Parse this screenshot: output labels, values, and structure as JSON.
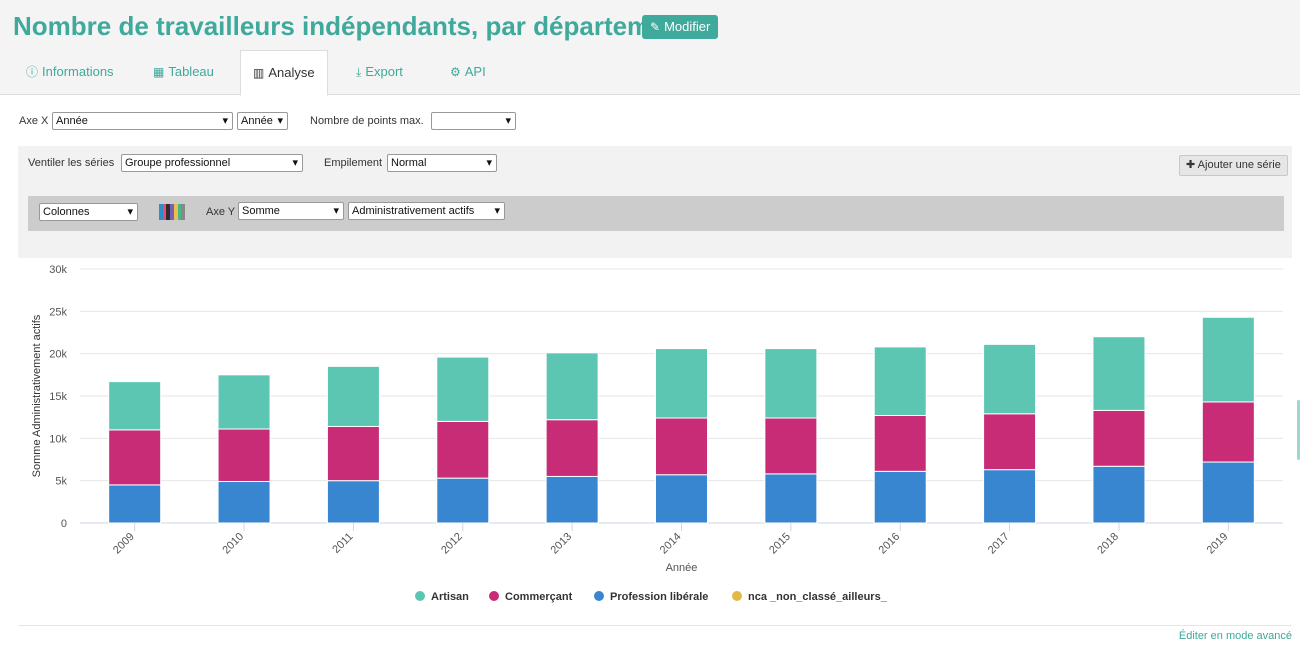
{
  "header": {
    "title": "Nombre de travailleurs indépendants, par département",
    "edit_label": "Modifier"
  },
  "tabs": [
    {
      "label": "Informations",
      "icon": "info-circle-icon",
      "active": false
    },
    {
      "label": "Tableau",
      "icon": "table-icon",
      "active": false
    },
    {
      "label": "Analyse",
      "icon": "bar-chart-icon",
      "active": true
    },
    {
      "label": "Export",
      "icon": "download-icon",
      "active": false
    },
    {
      "label": "API",
      "icon": "gears-icon",
      "active": false
    }
  ],
  "controls": {
    "x_axis_label": "Axe X",
    "x_axis_field": "Année",
    "x_axis_granularity": "Année",
    "max_points_label": "Nombre de points max.",
    "max_points_value": "",
    "breakdown_label": "Ventiler les séries",
    "breakdown_value": "Groupe professionnel",
    "stacking_label": "Empilement",
    "stacking_value": "Normal",
    "add_series_label": "Ajouter une série",
    "series": {
      "chart_type": "Colonnes",
      "y_axis_label": "Axe Y",
      "aggregation": "Somme",
      "field": "Administrativement actifs"
    }
  },
  "colors": {
    "accent": "#3fa99b",
    "artisan": "#5cc6b2",
    "commercant": "#c92c76",
    "profession_liberale": "#3886cf",
    "nca": "#e3b845"
  },
  "chart_data": {
    "type": "bar",
    "stacked": true,
    "categories": [
      "2009",
      "2010",
      "2011",
      "2012",
      "2013",
      "2014",
      "2015",
      "2016",
      "2017",
      "2018",
      "2019"
    ],
    "series": [
      {
        "name": "Profession libérale",
        "color": "#3886cf",
        "values": [
          4500,
          4900,
          5000,
          5300,
          5500,
          5700,
          5800,
          6100,
          6300,
          6700,
          7200
        ]
      },
      {
        "name": "Commerçant",
        "color": "#c92c76",
        "values": [
          6500,
          6200,
          6400,
          6700,
          6700,
          6700,
          6600,
          6600,
          6600,
          6600,
          7100
        ]
      },
      {
        "name": "Artisan",
        "color": "#5cc6b2",
        "values": [
          5700,
          6400,
          7100,
          7600,
          7900,
          8200,
          8200,
          8100,
          8200,
          8700,
          10000
        ]
      },
      {
        "name": "nca _non_classé_ailleurs_",
        "color": "#e3b845",
        "values": [
          0,
          0,
          0,
          0,
          0,
          0,
          0,
          0,
          0,
          0,
          0
        ]
      }
    ],
    "legend_order": [
      "Artisan",
      "Commerçant",
      "Profession libérale",
      "nca _non_classé_ailleurs_"
    ],
    "xlabel": "Année",
    "ylabel": "Somme Administrativement actifs",
    "ylim": [
      0,
      30000
    ],
    "yticks": [
      0,
      5000,
      10000,
      15000,
      20000,
      25000,
      30000
    ],
    "ytick_labels": [
      "0",
      "5k",
      "10k",
      "15k",
      "20k",
      "25k",
      "30k"
    ],
    "grid": true,
    "legend_position": "bottom-center"
  },
  "footer": {
    "advanced_link": "Éditer en mode avancé"
  }
}
